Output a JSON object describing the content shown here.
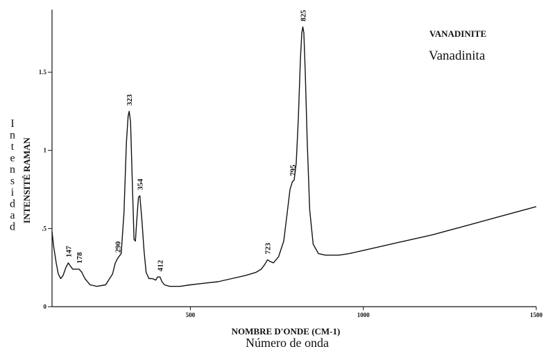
{
  "chart_data": {
    "type": "line",
    "title": "VANADINITE",
    "subtitle": "Vanadinita",
    "xlabel": "NOMBRE D'ONDE (CM-1)",
    "xlabel_translation": "Número de onda",
    "ylabel": "INTENSITÉ RAMAN",
    "ylabel_translation": "Intensidad",
    "xlim": [
      100,
      1500
    ],
    "ylim": [
      0,
      1.9
    ],
    "x_ticks": [
      {
        "value": 500,
        "label": "500"
      },
      {
        "value": 1000,
        "label": "1000"
      },
      {
        "value": 1500,
        "label": "1500"
      }
    ],
    "y_ticks": [
      {
        "value": 0,
        "label": "0"
      },
      {
        "value": 0.5,
        "label": ".5"
      },
      {
        "value": 1,
        "label": "1"
      },
      {
        "value": 1.5,
        "label": "1.5"
      }
    ],
    "grid": false,
    "legend": "none",
    "series": [
      {
        "x": [
          100,
          105,
          112,
          118,
          125,
          132,
          140,
          147,
          153,
          160,
          170,
          178,
          186,
          195,
          210,
          230,
          255,
          275,
          283,
          290,
          300,
          308,
          315,
          320,
          323,
          327,
          332,
          337,
          341,
          345,
          350,
          354,
          360,
          366,
          372,
          380,
          390,
          400,
          405,
          412,
          418,
          425,
          440,
          470,
          500,
          540,
          580,
          620,
          660,
          690,
          705,
          715,
          723,
          730,
          740,
          755,
          770,
          780,
          788,
          795,
          800,
          806,
          812,
          818,
          822,
          825,
          828,
          832,
          838,
          845,
          855,
          870,
          890,
          910,
          930,
          960,
          1000,
          1100,
          1200,
          1300,
          1400,
          1500
        ],
        "y": [
          0.48,
          0.38,
          0.28,
          0.21,
          0.18,
          0.2,
          0.25,
          0.28,
          0.26,
          0.24,
          0.24,
          0.24,
          0.22,
          0.18,
          0.14,
          0.13,
          0.14,
          0.21,
          0.28,
          0.31,
          0.34,
          0.6,
          1.05,
          1.22,
          1.25,
          1.18,
          0.8,
          0.43,
          0.42,
          0.55,
          0.7,
          0.71,
          0.55,
          0.36,
          0.22,
          0.18,
          0.18,
          0.17,
          0.19,
          0.19,
          0.16,
          0.14,
          0.13,
          0.13,
          0.14,
          0.15,
          0.16,
          0.18,
          0.2,
          0.22,
          0.24,
          0.27,
          0.3,
          0.29,
          0.28,
          0.32,
          0.42,
          0.6,
          0.75,
          0.8,
          0.81,
          0.92,
          1.2,
          1.58,
          1.75,
          1.79,
          1.75,
          1.5,
          1.05,
          0.62,
          0.4,
          0.34,
          0.33,
          0.33,
          0.33,
          0.34,
          0.36,
          0.41,
          0.46,
          0.52,
          0.58,
          0.64
        ]
      }
    ],
    "annotations": [
      {
        "x": 147,
        "y": 0.28,
        "label": "147"
      },
      {
        "x": 178,
        "y": 0.24,
        "label": "178"
      },
      {
        "x": 290,
        "y": 0.31,
        "label": "290"
      },
      {
        "x": 323,
        "y": 1.25,
        "label": "323"
      },
      {
        "x": 354,
        "y": 0.71,
        "label": "354"
      },
      {
        "x": 412,
        "y": 0.19,
        "label": "412"
      },
      {
        "x": 723,
        "y": 0.3,
        "label": "723"
      },
      {
        "x": 795,
        "y": 0.8,
        "label": "795"
      },
      {
        "x": 825,
        "y": 1.79,
        "label": "825"
      }
    ]
  }
}
